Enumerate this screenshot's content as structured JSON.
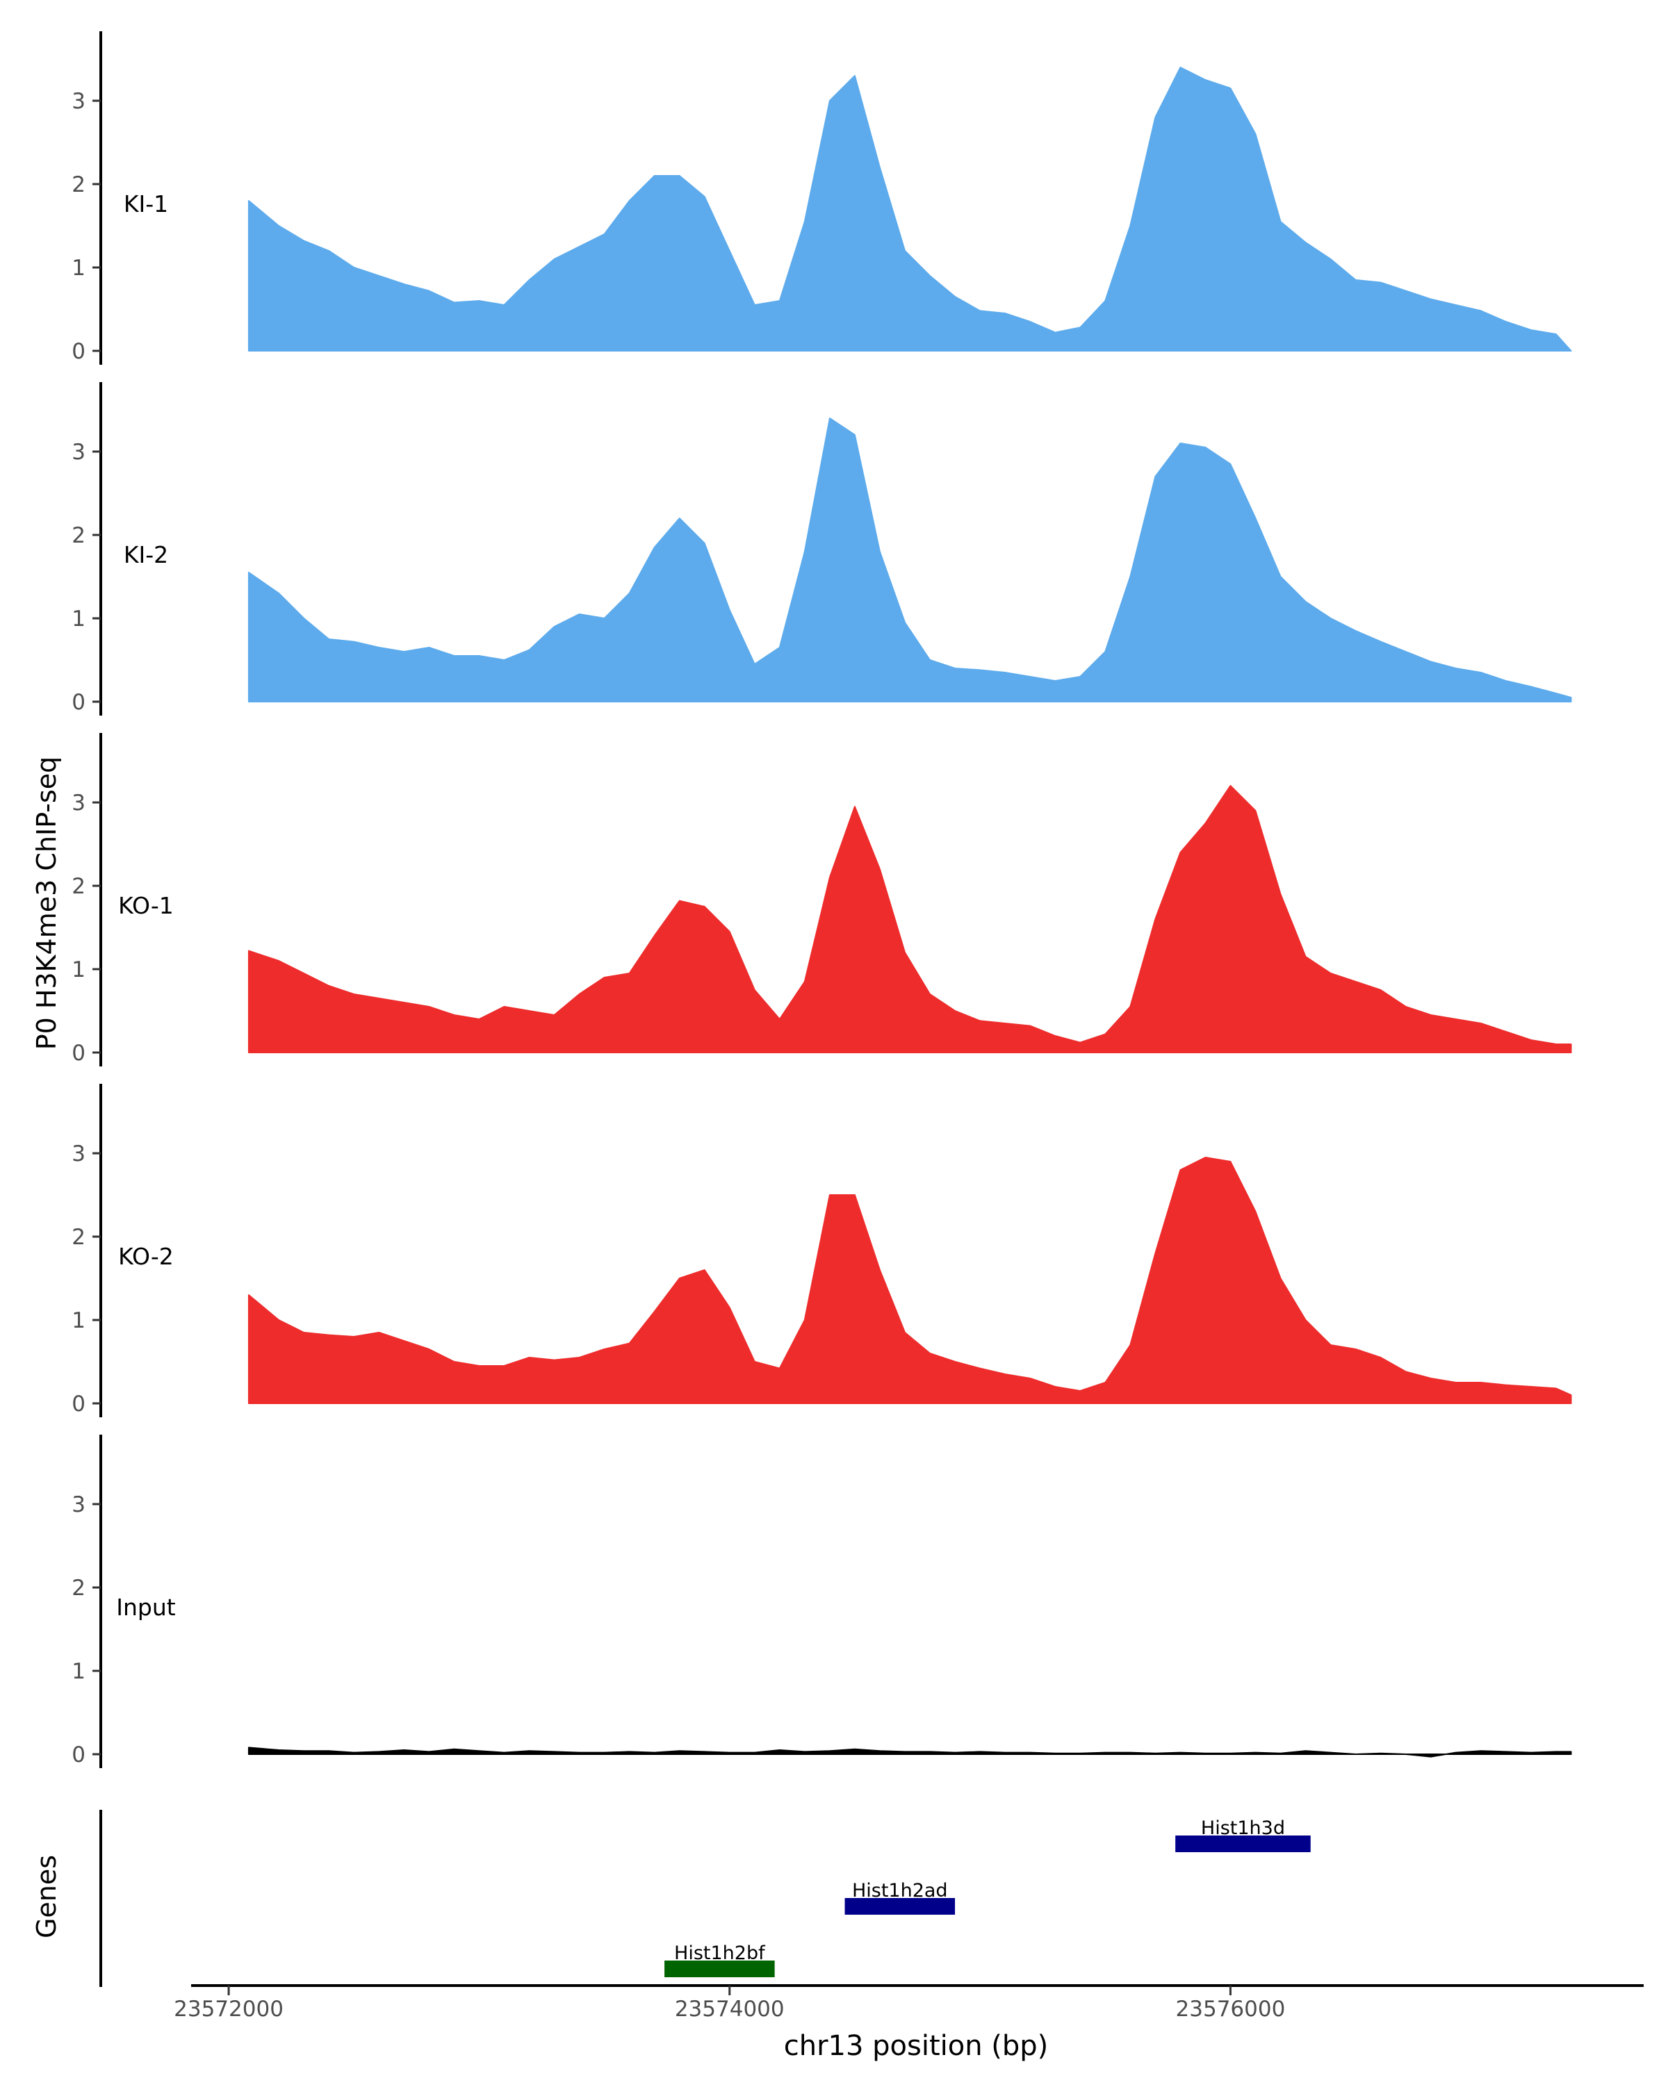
{
  "chart_data": {
    "type": "area",
    "title": "",
    "ylabel": "P0 H3K4me3 ChIP-seq",
    "xlabel": "chr13 position (bp)",
    "genes_label": "Genes",
    "xlim": [
      23571850,
      23577650
    ],
    "ylim": [
      0,
      3.9
    ],
    "y_ticks": [
      0,
      1,
      2,
      3
    ],
    "x_ticks": [
      {
        "value": 23572000,
        "label": "23572000"
      },
      {
        "value": 23574000,
        "label": "23574000"
      },
      {
        "value": 23576000,
        "label": "23576000"
      }
    ],
    "x": [
      23572080,
      23572200,
      23572300,
      23572400,
      23572500,
      23572600,
      23572700,
      23572800,
      23572900,
      23573000,
      23573100,
      23573200,
      23573300,
      23573400,
      23573500,
      23573600,
      23573700,
      23573800,
      23573900,
      23574000,
      23574100,
      23574200,
      23574300,
      23574400,
      23574500,
      23574600,
      23574700,
      23574800,
      23574900,
      23575000,
      23575100,
      23575200,
      23575300,
      23575400,
      23575500,
      23575600,
      23575700,
      23575800,
      23575900,
      23576000,
      23576100,
      23576200,
      23576300,
      23576400,
      23576500,
      23576600,
      23576700,
      23576800,
      23576900,
      23577000,
      23577100,
      23577200,
      23577300,
      23577360
    ],
    "series": [
      {
        "name": "KI-1",
        "color": "#5DABEC",
        "values": [
          1.8,
          1.5,
          1.32,
          1.2,
          1.0,
          0.9,
          0.8,
          0.72,
          0.58,
          0.6,
          0.55,
          0.85,
          1.1,
          1.25,
          1.4,
          1.8,
          2.1,
          2.1,
          1.85,
          1.2,
          0.55,
          0.6,
          1.55,
          3.0,
          3.3,
          2.2,
          1.2,
          0.9,
          0.65,
          0.48,
          0.45,
          0.35,
          0.22,
          0.28,
          0.6,
          1.5,
          2.8,
          3.4,
          3.25,
          3.15,
          2.6,
          1.55,
          1.3,
          1.1,
          0.85,
          0.82,
          0.72,
          0.62,
          0.55,
          0.48,
          0.35,
          0.25,
          0.2,
          0.0
        ]
      },
      {
        "name": "KI-2",
        "color": "#5DABEC",
        "values": [
          1.55,
          1.3,
          1.0,
          0.75,
          0.72,
          0.65,
          0.6,
          0.65,
          0.55,
          0.55,
          0.5,
          0.62,
          0.9,
          1.05,
          1.0,
          1.3,
          1.85,
          2.2,
          1.9,
          1.1,
          0.45,
          0.65,
          1.8,
          3.4,
          3.2,
          1.8,
          0.95,
          0.5,
          0.4,
          0.38,
          0.35,
          0.3,
          0.25,
          0.3,
          0.6,
          1.5,
          2.7,
          3.1,
          3.05,
          2.85,
          2.2,
          1.5,
          1.2,
          1.0,
          0.85,
          0.72,
          0.6,
          0.48,
          0.4,
          0.35,
          0.25,
          0.18,
          0.1,
          0.05
        ]
      },
      {
        "name": "KO-1",
        "color": "#EE2C2C",
        "values": [
          1.22,
          1.1,
          0.95,
          0.8,
          0.7,
          0.65,
          0.6,
          0.55,
          0.45,
          0.4,
          0.55,
          0.5,
          0.45,
          0.7,
          0.9,
          0.95,
          1.4,
          1.82,
          1.75,
          1.45,
          0.75,
          0.4,
          0.85,
          2.1,
          2.95,
          2.2,
          1.2,
          0.7,
          0.5,
          0.38,
          0.35,
          0.32,
          0.2,
          0.12,
          0.22,
          0.55,
          1.6,
          2.4,
          2.75,
          3.2,
          2.9,
          1.9,
          1.15,
          0.95,
          0.85,
          0.75,
          0.55,
          0.45,
          0.4,
          0.35,
          0.25,
          0.15,
          0.1,
          0.1
        ]
      },
      {
        "name": "KO-2",
        "color": "#EE2C2C",
        "values": [
          1.3,
          1.0,
          0.85,
          0.82,
          0.8,
          0.85,
          0.75,
          0.65,
          0.5,
          0.45,
          0.45,
          0.55,
          0.52,
          0.55,
          0.65,
          0.72,
          1.1,
          1.5,
          1.6,
          1.15,
          0.5,
          0.42,
          1.0,
          2.5,
          2.5,
          1.6,
          0.85,
          0.6,
          0.5,
          0.42,
          0.35,
          0.3,
          0.2,
          0.15,
          0.25,
          0.7,
          1.8,
          2.8,
          2.95,
          2.9,
          2.3,
          1.5,
          1.0,
          0.7,
          0.65,
          0.55,
          0.38,
          0.3,
          0.25,
          0.25,
          0.22,
          0.2,
          0.18,
          0.1
        ]
      },
      {
        "name": "Input",
        "color": "#000000",
        "values": [
          0.08,
          0.05,
          0.04,
          0.04,
          0.02,
          0.03,
          0.05,
          0.03,
          0.06,
          0.04,
          0.02,
          0.04,
          0.03,
          0.02,
          0.02,
          0.03,
          0.02,
          0.04,
          0.03,
          0.02,
          0.02,
          0.05,
          0.03,
          0.04,
          0.06,
          0.04,
          0.03,
          0.03,
          0.02,
          0.03,
          0.02,
          0.02,
          0.01,
          0.01,
          0.02,
          0.02,
          0.01,
          0.02,
          0.01,
          0.01,
          0.02,
          0.01,
          0.04,
          0.02,
          0.0,
          0.01,
          0.0,
          -0.03,
          0.02,
          0.04,
          0.03,
          0.02,
          0.03,
          0.03
        ]
      }
    ],
    "genes": [
      {
        "name": "Hist1h2bf",
        "start": 23573740,
        "end": 23574180,
        "row": 0,
        "color": "#006400"
      },
      {
        "name": "Hist1h2ad",
        "start": 23574460,
        "end": 23574900,
        "row": 1,
        "color": "#00008B"
      },
      {
        "name": "Hist1h3d",
        "start": 23575780,
        "end": 23576320,
        "row": 2,
        "color": "#00008B"
      }
    ]
  }
}
